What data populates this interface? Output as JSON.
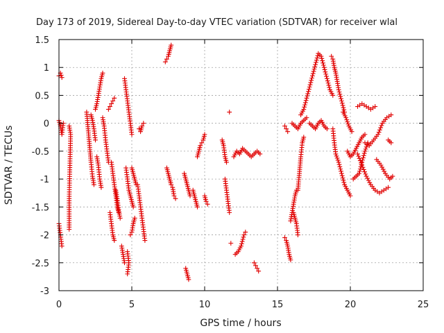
{
  "chart_data": {
    "type": "scatter",
    "title": "Day 173 of 2019, Sidereal Day-to-day VTEC variation (SDTVAR) for receiver wlal",
    "xlabel": "GPS time / hours",
    "ylabel": "SDTVAR / TECUs",
    "xlim": [
      0,
      25
    ],
    "ylim": [
      -3,
      1.5
    ],
    "xticks": [
      "0",
      "5",
      "10",
      "15",
      "20",
      "25"
    ],
    "xtick_values": [
      0,
      5,
      10,
      15,
      20,
      25
    ],
    "yticks": [
      "1.5",
      "1",
      "0.5",
      "0",
      "-0.5",
      "-1",
      "-1.5",
      "-2",
      "-2.5",
      "-3"
    ],
    "ytick_values": [
      1.5,
      1,
      0.5,
      0,
      -0.5,
      -1,
      -1.5,
      -2,
      -2.5,
      -3
    ],
    "grid": true,
    "marker": "+",
    "marker_color": "#e00000",
    "series": [
      {
        "name": "SDTVAR",
        "segments": [
          [
            [
              0.0,
              0.85
            ],
            [
              0.1,
              0.9
            ],
            [
              0.2,
              0.82
            ]
          ],
          [
            [
              0.0,
              0.05
            ],
            [
              0.1,
              -0.05
            ],
            [
              0.2,
              -0.2
            ],
            [
              0.3,
              0.0
            ]
          ],
          [
            [
              0.0,
              -1.8
            ],
            [
              0.1,
              -2.0
            ],
            [
              0.2,
              -2.2
            ]
          ],
          [
            [
              0.7,
              -0.05
            ],
            [
              0.8,
              -0.2
            ],
            [
              0.7,
              -1.35
            ],
            [
              0.7,
              -1.9
            ]
          ],
          [
            [
              1.9,
              0.2
            ],
            [
              2.0,
              -0.1
            ],
            [
              2.1,
              -0.4
            ],
            [
              2.2,
              -0.7
            ],
            [
              2.3,
              -0.95
            ],
            [
              2.4,
              -1.1
            ]
          ],
          [
            [
              2.2,
              0.15
            ],
            [
              2.3,
              0.05
            ],
            [
              2.4,
              -0.1
            ],
            [
              2.5,
              -0.3
            ]
          ],
          [
            [
              2.5,
              0.25
            ],
            [
              2.6,
              0.35
            ],
            [
              2.7,
              0.5
            ],
            [
              2.8,
              0.65
            ],
            [
              2.9,
              0.8
            ],
            [
              3.0,
              0.9
            ]
          ],
          [
            [
              2.6,
              -0.6
            ],
            [
              2.7,
              -0.75
            ],
            [
              2.8,
              -1.0
            ],
            [
              2.9,
              -1.15
            ]
          ],
          [
            [
              3.0,
              0.1
            ],
            [
              3.1,
              -0.05
            ],
            [
              3.2,
              -0.3
            ],
            [
              3.3,
              -0.5
            ],
            [
              3.4,
              -0.7
            ]
          ],
          [
            [
              3.4,
              0.25
            ],
            [
              3.5,
              0.3
            ],
            [
              3.6,
              0.35
            ],
            [
              3.7,
              0.4
            ],
            [
              3.8,
              0.45
            ]
          ],
          [
            [
              3.5,
              -1.6
            ],
            [
              3.6,
              -1.8
            ],
            [
              3.7,
              -2.0
            ],
            [
              3.8,
              -2.1
            ]
          ],
          [
            [
              3.6,
              -0.7
            ],
            [
              3.7,
              -0.9
            ],
            [
              3.8,
              -1.1
            ],
            [
              3.9,
              -1.3
            ],
            [
              4.0,
              -1.5
            ],
            [
              4.1,
              -1.6
            ]
          ],
          [
            [
              3.9,
              -1.2
            ],
            [
              4.0,
              -1.35
            ],
            [
              4.1,
              -1.55
            ],
            [
              4.2,
              -1.7
            ]
          ],
          [
            [
              4.3,
              -2.2
            ],
            [
              4.4,
              -2.35
            ],
            [
              4.5,
              -2.5
            ]
          ],
          [
            [
              4.5,
              0.8
            ],
            [
              4.6,
              0.6
            ],
            [
              4.7,
              0.4
            ],
            [
              4.8,
              0.2
            ],
            [
              4.9,
              0.0
            ],
            [
              5.0,
              -0.2
            ]
          ],
          [
            [
              4.6,
              -0.8
            ],
            [
              4.7,
              -1.0
            ],
            [
              4.8,
              -1.2
            ],
            [
              4.9,
              -1.3
            ],
            [
              5.0,
              -1.4
            ],
            [
              5.1,
              -1.5
            ]
          ],
          [
            [
              4.7,
              -2.3
            ],
            [
              4.8,
              -2.5
            ],
            [
              4.7,
              -2.7
            ]
          ],
          [
            [
              4.9,
              -2.0
            ],
            [
              5.0,
              -1.95
            ],
            [
              5.1,
              -1.8
            ],
            [
              5.2,
              -1.7
            ]
          ],
          [
            [
              5.0,
              -0.8
            ],
            [
              5.1,
              -0.9
            ],
            [
              5.2,
              -1.0
            ],
            [
              5.3,
              -1.1
            ]
          ],
          [
            [
              5.4,
              -1.1
            ],
            [
              5.5,
              -1.3
            ],
            [
              5.6,
              -1.5
            ],
            [
              5.7,
              -1.7
            ],
            [
              5.8,
              -1.9
            ],
            [
              5.9,
              -2.1
            ]
          ],
          [
            [
              5.5,
              -0.1
            ],
            [
              5.6,
              -0.15
            ],
            [
              5.7,
              -0.05
            ],
            [
              5.8,
              0.0
            ]
          ],
          [
            [
              7.3,
              1.1
            ],
            [
              7.4,
              1.15
            ],
            [
              7.5,
              1.2
            ],
            [
              7.6,
              1.3
            ],
            [
              7.7,
              1.4
            ]
          ],
          [
            [
              7.4,
              -0.8
            ],
            [
              7.5,
              -0.9
            ],
            [
              7.6,
              -1.0
            ],
            [
              7.7,
              -1.1
            ],
            [
              7.8,
              -1.15
            ],
            [
              7.9,
              -1.3
            ],
            [
              8.0,
              -1.35
            ]
          ],
          [
            [
              8.6,
              -0.9
            ],
            [
              8.7,
              -1.0
            ],
            [
              8.8,
              -1.1
            ],
            [
              8.9,
              -1.2
            ],
            [
              9.0,
              -1.3
            ]
          ],
          [
            [
              8.7,
              -2.6
            ],
            [
              8.8,
              -2.7
            ],
            [
              8.9,
              -2.8
            ]
          ],
          [
            [
              9.5,
              -0.6
            ],
            [
              9.6,
              -0.5
            ],
            [
              9.7,
              -0.4
            ],
            [
              9.8,
              -0.35
            ],
            [
              9.9,
              -0.3
            ],
            [
              10.0,
              -0.2
            ]
          ],
          [
            [
              9.2,
              -1.2
            ],
            [
              9.3,
              -1.3
            ],
            [
              9.4,
              -1.4
            ],
            [
              9.5,
              -1.5
            ]
          ],
          [
            [
              10.0,
              -1.3
            ],
            [
              10.1,
              -1.4
            ],
            [
              10.2,
              -1.45
            ]
          ],
          [
            [
              11.2,
              -0.3
            ],
            [
              11.3,
              -0.4
            ],
            [
              11.4,
              -0.6
            ],
            [
              11.5,
              -0.7
            ]
          ],
          [
            [
              11.4,
              -1.0
            ],
            [
              11.5,
              -1.2
            ],
            [
              11.6,
              -1.4
            ],
            [
              11.7,
              -1.6
            ]
          ],
          [
            [
              11.7,
              0.2
            ]
          ],
          [
            [
              12.0,
              -0.6
            ],
            [
              12.2,
              -0.5
            ],
            [
              12.4,
              -0.55
            ],
            [
              12.6,
              -0.45
            ],
            [
              12.8,
              -0.5
            ],
            [
              13.0,
              -0.55
            ],
            [
              13.2,
              -0.6
            ],
            [
              13.4,
              -0.55
            ],
            [
              13.6,
              -0.5
            ],
            [
              13.8,
              -0.55
            ]
          ],
          [
            [
              12.1,
              -2.35
            ],
            [
              12.3,
              -2.3
            ],
            [
              12.5,
              -2.2
            ],
            [
              12.7,
              -2.0
            ],
            [
              12.8,
              -1.95
            ]
          ],
          [
            [
              11.8,
              -2.15
            ]
          ],
          [
            [
              13.4,
              -2.5
            ],
            [
              13.5,
              -2.55
            ],
            [
              13.6,
              -2.6
            ],
            [
              13.7,
              -2.65
            ]
          ],
          [
            [
              15.5,
              -0.05
            ],
            [
              15.6,
              -0.1
            ],
            [
              15.7,
              -0.15
            ]
          ],
          [
            [
              15.5,
              -2.05
            ],
            [
              15.6,
              -2.1
            ],
            [
              15.7,
              -2.2
            ],
            [
              15.8,
              -2.35
            ],
            [
              15.9,
              -2.45
            ]
          ],
          [
            [
              15.9,
              -1.75
            ],
            [
              16.0,
              -1.6
            ],
            [
              16.1,
              -1.45
            ],
            [
              16.2,
              -1.3
            ],
            [
              16.3,
              -1.2
            ]
          ],
          [
            [
              16.1,
              -1.6
            ],
            [
              16.2,
              -1.7
            ],
            [
              16.3,
              -1.8
            ],
            [
              16.4,
              -2.0
            ]
          ],
          [
            [
              16.4,
              -1.2
            ],
            [
              16.5,
              -0.9
            ],
            [
              16.6,
              -0.6
            ],
            [
              16.7,
              -0.35
            ],
            [
              16.8,
              -0.25
            ]
          ],
          [
            [
              16.0,
              0.0
            ],
            [
              16.2,
              -0.05
            ],
            [
              16.4,
              -0.1
            ],
            [
              16.6,
              0.0
            ],
            [
              16.8,
              0.05
            ],
            [
              17.0,
              0.1
            ]
          ],
          [
            [
              16.6,
              0.15
            ],
            [
              16.8,
              0.25
            ],
            [
              17.0,
              0.45
            ],
            [
              17.2,
              0.65
            ],
            [
              17.4,
              0.85
            ],
            [
              17.6,
              1.05
            ],
            [
              17.8,
              1.25
            ],
            [
              18.0,
              1.2
            ],
            [
              18.2,
              1.0
            ],
            [
              18.4,
              0.8
            ],
            [
              18.6,
              0.6
            ],
            [
              18.8,
              0.5
            ]
          ],
          [
            [
              17.2,
              0.0
            ],
            [
              17.4,
              -0.05
            ],
            [
              17.6,
              -0.1
            ],
            [
              17.8,
              0.0
            ],
            [
              18.0,
              0.05
            ],
            [
              18.2,
              -0.05
            ],
            [
              18.4,
              -0.1
            ]
          ],
          [
            [
              18.7,
              1.2
            ],
            [
              18.8,
              1.15
            ],
            [
              18.9,
              1.0
            ],
            [
              19.0,
              0.9
            ],
            [
              19.2,
              0.6
            ],
            [
              19.4,
              0.4
            ],
            [
              19.6,
              0.2
            ]
          ],
          [
            [
              18.8,
              -0.1
            ],
            [
              18.9,
              -0.35
            ],
            [
              19.0,
              -0.55
            ],
            [
              19.2,
              -0.7
            ],
            [
              19.4,
              -0.9
            ],
            [
              19.6,
              -1.1
            ],
            [
              19.8,
              -1.2
            ],
            [
              20.0,
              -1.3
            ]
          ],
          [
            [
              19.5,
              0.2
            ],
            [
              19.7,
              0.1
            ],
            [
              19.9,
              -0.05
            ],
            [
              20.1,
              -0.15
            ]
          ],
          [
            [
              19.8,
              -0.5
            ],
            [
              20.0,
              -0.6
            ],
            [
              20.2,
              -0.55
            ],
            [
              20.4,
              -0.45
            ],
            [
              20.6,
              -0.35
            ],
            [
              20.8,
              -0.25
            ],
            [
              21.0,
              -0.2
            ]
          ],
          [
            [
              20.2,
              -1.0
            ],
            [
              20.4,
              -0.95
            ],
            [
              20.6,
              -0.9
            ],
            [
              20.8,
              -0.7
            ],
            [
              21.0,
              -0.5
            ],
            [
              21.2,
              -0.35
            ]
          ],
          [
            [
              20.5,
              0.3
            ],
            [
              20.8,
              0.35
            ],
            [
              21.1,
              0.3
            ],
            [
              21.4,
              0.25
            ],
            [
              21.7,
              0.3
            ]
          ],
          [
            [
              20.5,
              -0.55
            ],
            [
              20.8,
              -0.75
            ],
            [
              21.1,
              -0.95
            ],
            [
              21.4,
              -1.1
            ],
            [
              21.7,
              -1.2
            ],
            [
              22.0,
              -1.25
            ],
            [
              22.3,
              -1.2
            ],
            [
              22.6,
              -1.15
            ]
          ],
          [
            [
              21.0,
              -0.35
            ],
            [
              21.3,
              -0.4
            ],
            [
              21.6,
              -0.3
            ],
            [
              21.9,
              -0.2
            ],
            [
              22.2,
              0.0
            ],
            [
              22.5,
              0.1
            ],
            [
              22.8,
              0.15
            ]
          ],
          [
            [
              21.8,
              -0.65
            ],
            [
              22.1,
              -0.75
            ],
            [
              22.4,
              -0.9
            ],
            [
              22.7,
              -1.0
            ],
            [
              22.9,
              -0.95
            ]
          ],
          [
            [
              22.6,
              -0.3
            ],
            [
              22.8,
              -0.35
            ]
          ]
        ]
      }
    ]
  }
}
